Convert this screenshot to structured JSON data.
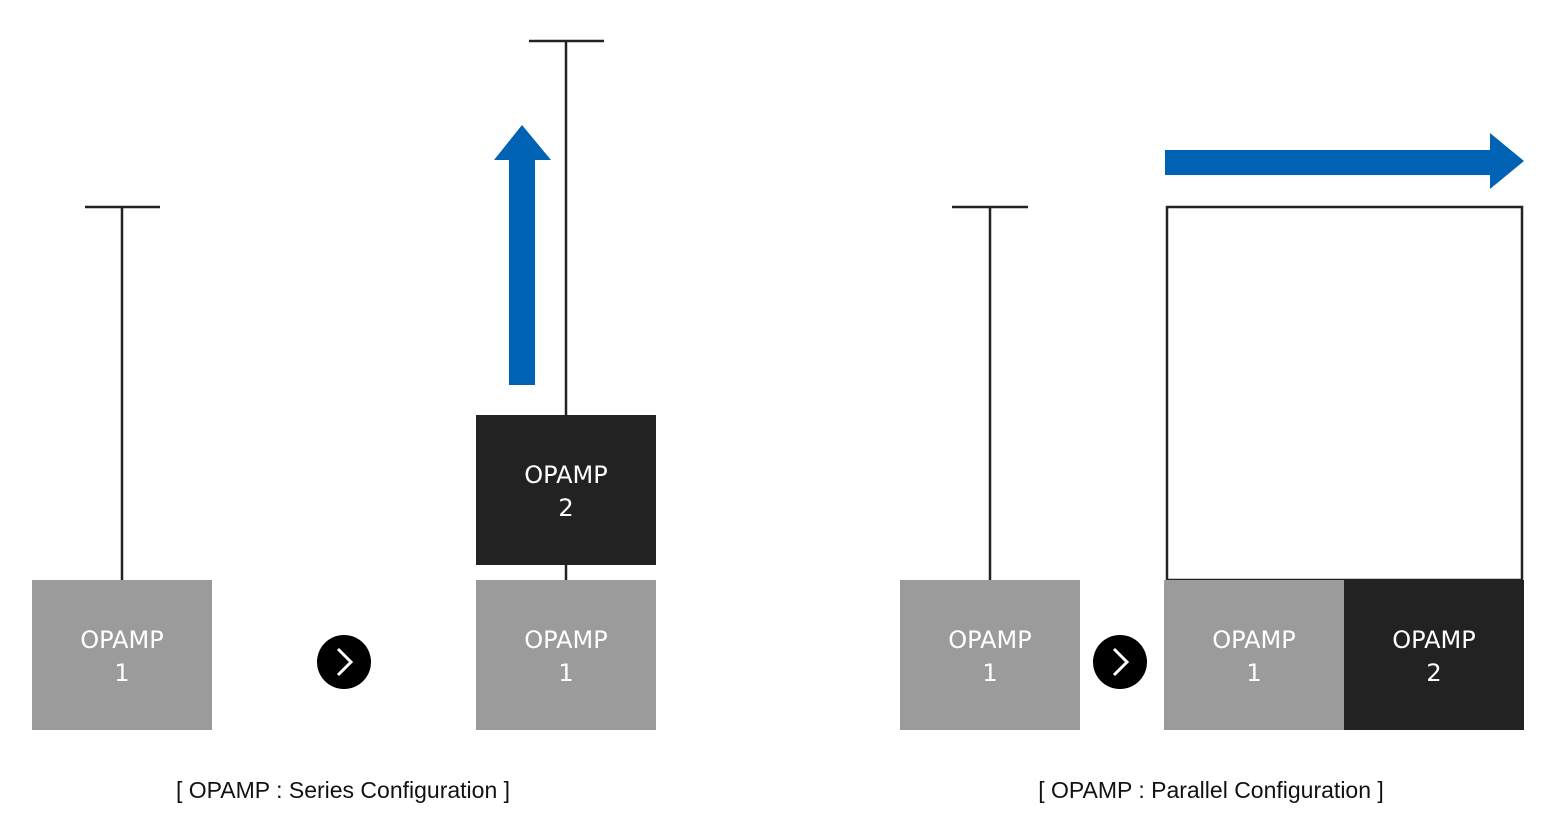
{
  "colors": {
    "opamp1": "#9b9b9b",
    "opamp2": "#222222",
    "arrow": "#0062b4",
    "line": "#222222"
  },
  "series": {
    "before": {
      "opamp1": {
        "line1": "OPAMP",
        "line2": "1"
      }
    },
    "after": {
      "opamp1": {
        "line1": "OPAMP",
        "line2": "1"
      },
      "opamp2": {
        "line1": "OPAMP",
        "line2": "2"
      }
    },
    "caption": "[ OPAMP : Series Configuration ]"
  },
  "parallel": {
    "before": {
      "opamp1": {
        "line1": "OPAMP",
        "line2": "1"
      }
    },
    "after": {
      "opamp1": {
        "line1": "OPAMP",
        "line2": "1"
      },
      "opamp2": {
        "line1": "OPAMP",
        "line2": "2"
      }
    },
    "caption": "[ OPAMP : Parallel Configuration ]"
  },
  "icons": {
    "next": "chevron-right-circle-icon",
    "increase_up": "arrow-up-icon",
    "increase_right": "arrow-right-icon"
  }
}
